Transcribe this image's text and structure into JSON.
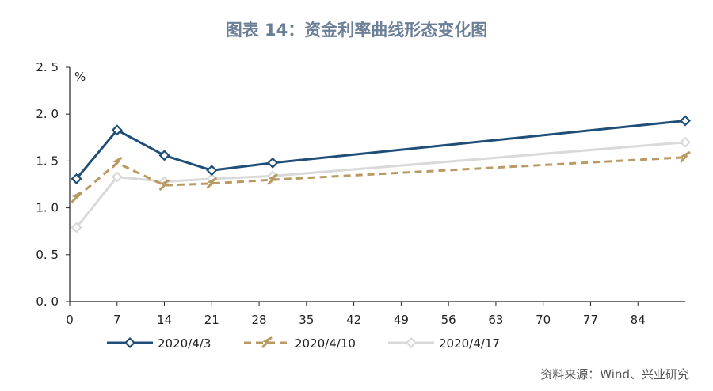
{
  "title": "图表 14：资金利率曲线形态变化图",
  "source": "资料来源：Wind、兴业研究",
  "chart_data": {
    "type": "line",
    "ylabel": "%",
    "ylim": [
      0.0,
      2.5
    ],
    "yticks": [
      "0. 0",
      "0. 5",
      "1. 0",
      "1. 5",
      "2. 0",
      "2. 5"
    ],
    "ytick_values": [
      0.0,
      0.5,
      1.0,
      1.5,
      2.0,
      2.5
    ],
    "xlim": [
      0,
      91
    ],
    "xticks": [
      0,
      7,
      14,
      21,
      28,
      35,
      42,
      49,
      56,
      63,
      70,
      77,
      84
    ],
    "x": [
      1,
      7,
      14,
      21,
      30,
      91
    ],
    "legend": "bottom",
    "series": [
      {
        "name": "2020/4/3",
        "values": [
          1.31,
          1.83,
          1.56,
          1.4,
          1.48,
          1.93
        ],
        "color": "#1f4e79",
        "style": "solid",
        "marker": "diamond"
      },
      {
        "name": "2020/4/10",
        "values": [
          1.11,
          1.48,
          1.24,
          1.26,
          1.3,
          1.54
        ],
        "color": "#b99a63",
        "style": "dashed",
        "marker": "dash"
      },
      {
        "name": "2020/4/17",
        "values": [
          0.79,
          1.33,
          1.28,
          1.31,
          1.34,
          1.7
        ],
        "color": "#d9d9d9",
        "style": "solid",
        "marker": "diamond"
      }
    ]
  }
}
